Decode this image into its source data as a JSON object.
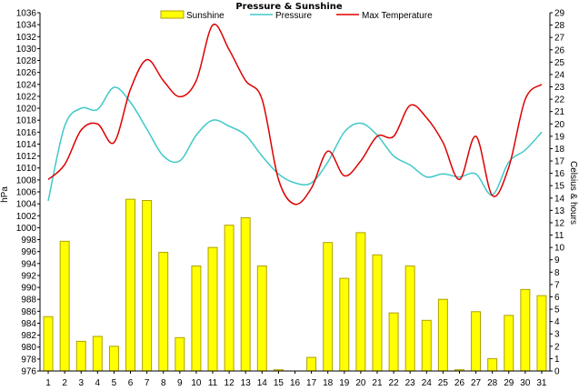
{
  "chart_data": {
    "type": "bar+line",
    "title": "Pressure & Sunshine",
    "ylabel_left": "hPa",
    "ylabel_right": "Celsius & hours",
    "grid": false,
    "legend_placement": "top",
    "legend": [
      {
        "name": "Sunshine",
        "color": "#ffff00",
        "border": "#b0a000",
        "kind": "bar"
      },
      {
        "name": "Pressure",
        "color": "#40c8c8",
        "kind": "line"
      },
      {
        "name": "Max Temperature",
        "color": "#dd0000",
        "kind": "line"
      }
    ],
    "x": [
      "1",
      "2",
      "3",
      "4",
      "5",
      "6",
      "7",
      "8",
      "9",
      "10",
      "11",
      "12",
      "13",
      "14",
      "15",
      "16",
      "17",
      "18",
      "19",
      "20",
      "21",
      "22",
      "23",
      "24",
      "25",
      "26",
      "27",
      "28",
      "29",
      "30",
      "31"
    ],
    "left_axis": {
      "min": 976,
      "max": 1036,
      "step": 2
    },
    "right_axis": {
      "min": 0,
      "max": 29,
      "step": 1
    },
    "series": [
      {
        "name": "Sunshine",
        "axis": "right",
        "values": [
          4.4,
          10.5,
          2.4,
          2.8,
          2.0,
          13.9,
          13.8,
          9.6,
          2.7,
          8.5,
          10.0,
          11.8,
          12.4,
          8.5,
          0.1,
          0.0,
          1.1,
          10.4,
          7.5,
          11.2,
          9.4,
          4.7,
          8.5,
          4.1,
          5.8,
          0.1,
          4.8,
          1.0,
          4.5,
          6.6,
          6.1
        ]
      },
      {
        "name": "Pressure",
        "axis": "left",
        "values": [
          1004.5,
          1017.0,
          1020.0,
          1019.8,
          1023.5,
          1021.0,
          1016.5,
          1012.0,
          1011.2,
          1015.5,
          1018.0,
          1017.0,
          1015.5,
          1012.0,
          1009.0,
          1007.5,
          1007.5,
          1011.0,
          1016.0,
          1017.5,
          1015.5,
          1012.0,
          1010.5,
          1008.5,
          1009.0,
          1008.5,
          1009.0,
          1005.5,
          1011.0,
          1013.0,
          1016.0
        ]
      },
      {
        "name": "Max Temperature",
        "axis": "right",
        "values": [
          15.5,
          16.7,
          19.5,
          20.0,
          18.5,
          22.8,
          25.2,
          23.5,
          22.2,
          23.5,
          28.0,
          26.0,
          23.5,
          22.0,
          15.5,
          13.5,
          14.8,
          17.8,
          15.8,
          17.0,
          19.0,
          19.0,
          21.5,
          20.5,
          18.5,
          15.5,
          19.0,
          14.2,
          16.5,
          22.0,
          23.2
        ]
      }
    ]
  }
}
